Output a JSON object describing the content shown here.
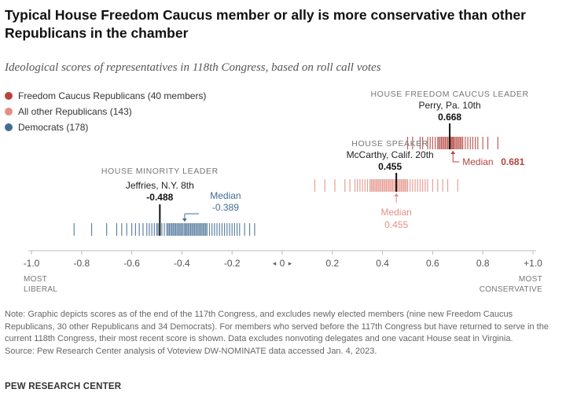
{
  "title": "Typical House Freedom Caucus member or ally is more conservative than other Republicans in the chamber",
  "subtitle": "Ideological scores of representatives in 118th Congress, based on roll call votes",
  "legend": [
    {
      "label": "Freedom Caucus Republicans (40 members)",
      "color": "#b5443e"
    },
    {
      "label": "All other Republicans (143)",
      "color": "#e48f84"
    },
    {
      "label": "Democrats (178)",
      "color": "#436d94"
    }
  ],
  "chart_data": {
    "type": "strip",
    "xlim": [
      -1.0,
      1.0
    ],
    "ticks": [
      {
        "value": -1.0,
        "label": "-1.0"
      },
      {
        "value": -0.8,
        "label": "-0.8"
      },
      {
        "value": -0.6,
        "label": "-0.6"
      },
      {
        "value": -0.4,
        "label": "-0.4"
      },
      {
        "value": -0.2,
        "label": "-0.2"
      },
      {
        "value": 0.0,
        "label": "0"
      },
      {
        "value": 0.2,
        "label": "0.2"
      },
      {
        "value": 0.4,
        "label": "0.4"
      },
      {
        "value": 0.6,
        "label": "0.6"
      },
      {
        "value": 0.8,
        "label": "0.8"
      },
      {
        "value": 1.0,
        "label": "+1.0"
      }
    ],
    "end_labels": {
      "left": "MOST LIBERAL",
      "right": "MOST CONSERVATIVE"
    },
    "series": [
      {
        "name": "Freedom Caucus Republicans (40 members)",
        "color": "#b5443e",
        "values": [
          0.5,
          0.52,
          0.55,
          0.56,
          0.58,
          0.59,
          0.6,
          0.61,
          0.62,
          0.625,
          0.63,
          0.635,
          0.64,
          0.645,
          0.65,
          0.655,
          0.66,
          0.665,
          0.668,
          0.672,
          0.676,
          0.68,
          0.681,
          0.685,
          0.69,
          0.695,
          0.7,
          0.705,
          0.71,
          0.715,
          0.72,
          0.73,
          0.74,
          0.75,
          0.76,
          0.77,
          0.78,
          0.8,
          0.82,
          0.86
        ],
        "median": 0.681,
        "median_label": "Median",
        "median_value_label": "0.681"
      },
      {
        "name": "All other Republicans (143)",
        "color": "#e48f84",
        "values": [
          0.13,
          0.17,
          0.21,
          0.25,
          0.27,
          0.29,
          0.3,
          0.31,
          0.32,
          0.33,
          0.34,
          0.35,
          0.355,
          0.36,
          0.365,
          0.37,
          0.375,
          0.38,
          0.385,
          0.39,
          0.395,
          0.4,
          0.405,
          0.41,
          0.415,
          0.42,
          0.425,
          0.43,
          0.435,
          0.44,
          0.445,
          0.45,
          0.455,
          0.46,
          0.465,
          0.47,
          0.475,
          0.48,
          0.485,
          0.49,
          0.495,
          0.5,
          0.51,
          0.52,
          0.53,
          0.54,
          0.55,
          0.56,
          0.57,
          0.58,
          0.6,
          0.62,
          0.64,
          0.66,
          0.7
        ],
        "median": 0.455,
        "median_label": "Median",
        "median_value_label": "0.455"
      },
      {
        "name": "Democrats (178)",
        "color": "#436d94",
        "values": [
          -0.83,
          -0.76,
          -0.7,
          -0.66,
          -0.64,
          -0.62,
          -0.6,
          -0.585,
          -0.57,
          -0.555,
          -0.54,
          -0.53,
          -0.52,
          -0.51,
          -0.5,
          -0.495,
          -0.488,
          -0.48,
          -0.47,
          -0.46,
          -0.455,
          -0.45,
          -0.445,
          -0.44,
          -0.435,
          -0.43,
          -0.425,
          -0.42,
          -0.415,
          -0.41,
          -0.405,
          -0.4,
          -0.395,
          -0.389,
          -0.385,
          -0.38,
          -0.375,
          -0.37,
          -0.365,
          -0.36,
          -0.355,
          -0.35,
          -0.345,
          -0.34,
          -0.335,
          -0.33,
          -0.325,
          -0.32,
          -0.315,
          -0.31,
          -0.305,
          -0.3,
          -0.29,
          -0.28,
          -0.27,
          -0.26,
          -0.25,
          -0.24,
          -0.23,
          -0.22,
          -0.21,
          -0.2,
          -0.19,
          -0.18,
          -0.17,
          -0.15,
          -0.13,
          -0.11
        ],
        "median": -0.389,
        "median_label": "Median",
        "median_value_label": "-0.389"
      }
    ],
    "annotations": [
      {
        "role": "HOUSE FREEDOM CAUCUS LEADER",
        "name": "Perry, Pa. 10th",
        "value": 0.668,
        "value_label": "0.668",
        "series": 0
      },
      {
        "role": "HOUSE SPEAKER",
        "name": "McCarthy, Calif. 20th",
        "value": 0.455,
        "value_label": "0.455",
        "series": 1
      },
      {
        "role": "HOUSE MINORITY LEADER",
        "name": "Jeffries, N.Y. 8th",
        "value": -0.488,
        "value_label": "-0.488",
        "series": 2
      }
    ]
  },
  "note": "Note: Graphic depicts scores as of the end of the 117th Congress, and excludes newly elected members (nine new Freedom Caucus Republicans, 30 other Republicans and 34 Democrats). For members who served before the 117th Congress but have returned to serve in the current 118th Congress, their most recent score is shown. Data excludes nonvoting delegates and one vacant House seat in Virginia.",
  "source": "Source: Pew Research Center analysis of Voteview DW-NOMINATE data accessed Jan. 4, 2023.",
  "brand": "PEW RESEARCH CENTER"
}
